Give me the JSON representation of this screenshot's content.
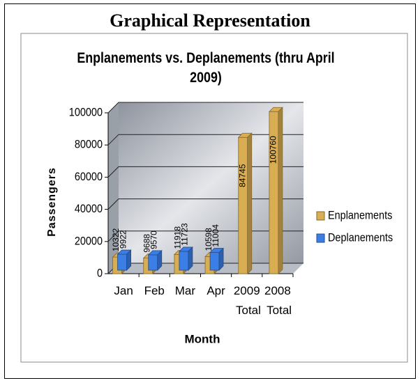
{
  "header": {
    "title": "Graphical Representation"
  },
  "chart_data": {
    "type": "bar",
    "title": "Enplanements vs. Deplanements (thru April 2009)",
    "x_label": "Month",
    "y_label": "Passengers",
    "categories": [
      "Jan",
      "Feb",
      "Mar",
      "Apr",
      "2009 Total",
      "2008 Total"
    ],
    "series": [
      {
        "name": "Enplanements",
        "color": "#d9ad52",
        "values": [
          10322,
          9688,
          11918,
          10598,
          84745,
          100760
        ]
      },
      {
        "name": "Deplanements",
        "color": "#3b7fe6",
        "values": [
          9922,
          9570,
          11723,
          11004,
          null,
          null
        ]
      }
    ],
    "ylim": [
      0,
      100000
    ],
    "yticks": [
      0,
      20000,
      40000,
      60000,
      80000,
      100000
    ],
    "grid": true,
    "legend": "right"
  }
}
